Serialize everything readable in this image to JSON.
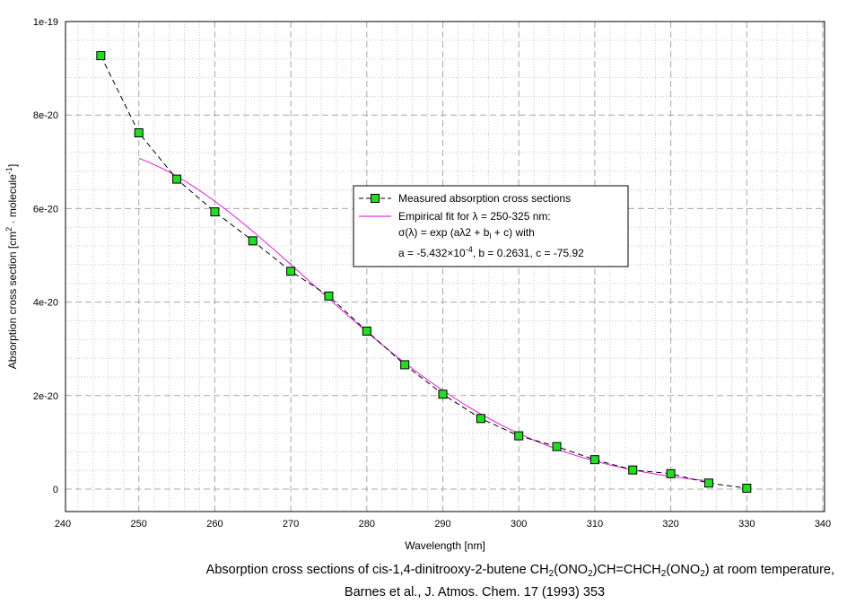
{
  "chart_data": {
    "type": "line",
    "xlabel": "Wavelength [nm]",
    "ylabel": {
      "a": "Absorption cross section [cm",
      "sup1": "2",
      "b": " · molecule",
      "sup2": "-1",
      "c": "]"
    },
    "xlim": [
      240,
      340
    ],
    "ylim": [
      0,
      1e-19
    ],
    "x_ticks": [
      "240",
      "250",
      "260",
      "270",
      "280",
      "290",
      "300",
      "310",
      "320",
      "330",
      "340"
    ],
    "x_tick_values": [
      240,
      250,
      260,
      270,
      280,
      290,
      300,
      310,
      320,
      330,
      340
    ],
    "y_ticks": [
      "0",
      "2e-20",
      "4e-20",
      "6e-20",
      "8e-20",
      "1e-19"
    ],
    "y_tick_values": [
      0,
      2e-20,
      4e-20,
      6e-20,
      8e-20,
      1e-19
    ],
    "grid": true,
    "legend_position": "center-right",
    "series": [
      {
        "name": "Measured absorption cross sections",
        "style": "dashed line with square markers",
        "line_color": "#000000",
        "marker_color": "#22dd22",
        "x": [
          245,
          250,
          255,
          260,
          265,
          270,
          275,
          280,
          285,
          290,
          295,
          300,
          305,
          310,
          315,
          320,
          325,
          330
        ],
        "y": [
          9.27e-20,
          7.62e-20,
          6.63e-20,
          5.93e-20,
          5.31e-20,
          4.66e-20,
          4.13e-20,
          3.38e-20,
          2.66e-20,
          2.03e-20,
          1.51e-20,
          1.14e-20,
          9.1e-21,
          6.3e-21,
          4.1e-21,
          3.3e-21,
          1.3e-21,
          2e-22
        ]
      },
      {
        "name": "Empirical fit for λ = 250-325 nm:",
        "style": "solid line",
        "line_color": "#dd33dd",
        "fit": {
          "a": -0.0005432,
          "b": 0.2631,
          "c": -75.92,
          "range": [
            250,
            325
          ]
        }
      }
    ],
    "legend_lines": {
      "line2": "σ(λ) = exp (aλ2 + b",
      "line2_sub": "l",
      "line2_end": " + c) with",
      "line3": "a = -5.432×10",
      "line3_sup": "-4",
      "line3_end": ", b = 0.2631, c = -75.92"
    }
  },
  "caption": {
    "line1_a": "Absorption cross sections of cis-1,4-dinitrooxy-2-butene CH",
    "sub1": "2",
    "line1_b": "(ONO",
    "sub2": "2",
    "line1_c": ")CH=CHCH",
    "sub3": "2",
    "line1_d": "(ONO",
    "sub4": "2",
    "line1_e": ") at room temperature,",
    "line2": "Barnes et al., J. Atmos. Chem. 17 (1993) 353"
  }
}
